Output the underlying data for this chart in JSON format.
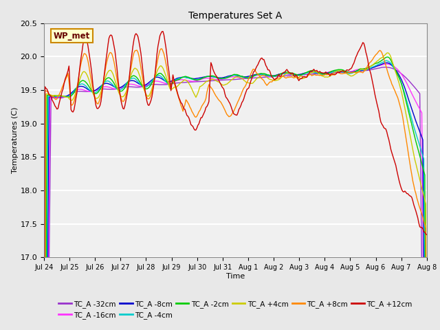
{
  "title": "Temperatures Set A",
  "xlabel": "Time",
  "ylabel": "Temperatures (C)",
  "ylim": [
    17.0,
    20.5
  ],
  "yticks": [
    17.0,
    17.5,
    18.0,
    18.5,
    19.0,
    19.5,
    20.0,
    20.5
  ],
  "date_labels": [
    "Jul 24",
    "Jul 25",
    "Jul 26",
    "Jul 27",
    "Jul 28",
    "Jul 29",
    "Jul 30",
    "Jul 31",
    "Aug 1",
    "Aug 2",
    "Aug 3",
    "Aug 4",
    "Aug 5",
    "Aug 6",
    "Aug 7",
    "Aug 8"
  ],
  "legend_entries": [
    {
      "label": "TC_A -32cm",
      "color": "#9933CC"
    },
    {
      "label": "TC_A -16cm",
      "color": "#FF33FF"
    },
    {
      "label": "TC_A -8cm",
      "color": "#0000CC"
    },
    {
      "label": "TC_A -4cm",
      "color": "#00CCCC"
    },
    {
      "label": "TC_A -2cm",
      "color": "#00CC00"
    },
    {
      "label": "TC_A +4cm",
      "color": "#CCCC00"
    },
    {
      "label": "TC_A +8cm",
      "color": "#FF8800"
    },
    {
      "label": "TC_A +12cm",
      "color": "#CC0000"
    }
  ],
  "annotation_text": "WP_met",
  "bg_color": "#E8E8E8",
  "plot_bg_color": "#F0F0F0",
  "grid_color": "#FFFFFF"
}
